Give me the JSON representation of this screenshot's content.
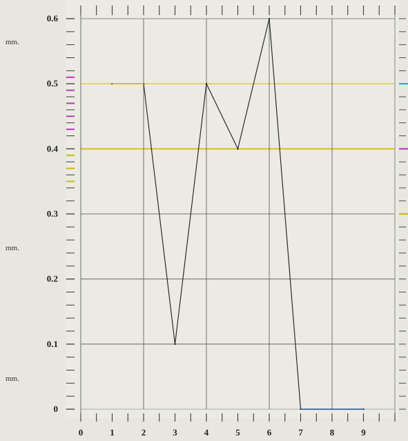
{
  "chart_data": {
    "type": "line",
    "title": "",
    "xlabel": "",
    "ylabel": "",
    "x": [
      1,
      2,
      3,
      4,
      5,
      6,
      7,
      8,
      9
    ],
    "series": [
      {
        "values": [
          0.5,
          0.5,
          0.1,
          0.5,
          0.4,
          0.6,
          0,
          0,
          0
        ]
      }
    ],
    "xlim": [
      0,
      10
    ],
    "ylim": [
      0,
      0.6
    ],
    "x_ticks": [
      "0",
      "1",
      "2",
      "3",
      "4",
      "5",
      "6",
      "7",
      "8",
      "9"
    ],
    "y_ticks": [
      "0",
      "0.1",
      "0.2",
      "0.3",
      "0.4",
      "0.5",
      "0.6"
    ],
    "unit_labels": [
      "mm.",
      "mm.",
      "mm."
    ],
    "grid": true,
    "colors": {
      "line": "#2a2a2a",
      "grid": "#555555",
      "highlight": "#d9c21a",
      "baseline": "#3e6fa8",
      "tick_magenta": "#b83ab8",
      "tick_yellow": "#cdb51c",
      "tick_cyan": "#2fa9c4"
    }
  }
}
